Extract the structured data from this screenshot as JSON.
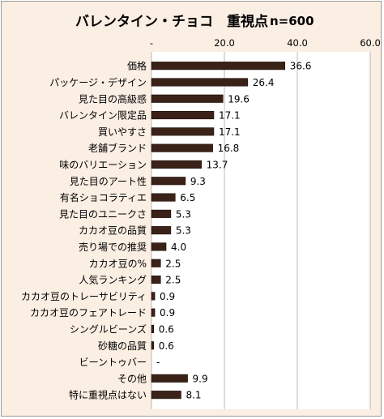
{
  "chart_data": {
    "type": "bar",
    "orientation": "horizontal",
    "title": "バレンタイン・チョコ　重視点",
    "subtitle": "n=600",
    "xlim": [
      0,
      60
    ],
    "x_ticks": [
      "-",
      "20.0",
      "40.0",
      "60.0"
    ],
    "categories": [
      "価格",
      "パッケージ・デザイン",
      "見た目の高級感",
      "バレンタイン限定品",
      "買いやすさ",
      "老舗ブランド",
      "味のバリエーション",
      "見た目のアート性",
      "有名ショコラティエ",
      "見た目のユニークさ",
      "カカオ豆の品質",
      "売り場での推奨",
      "カカオ豆の%",
      "人気ランキング",
      "カカオ豆のトレーサビリティ",
      "カカオ豆のフェアトレード",
      "シングルビーンズ",
      "砂糖の品質",
      "ビーントゥバー",
      "その他",
      "特に重視点はない"
    ],
    "values": [
      36.6,
      26.4,
      19.6,
      17.1,
      17.1,
      16.8,
      13.7,
      9.3,
      6.5,
      5.3,
      5.3,
      4.0,
      2.5,
      2.5,
      0.9,
      0.9,
      0.6,
      0.6,
      0,
      9.9,
      8.1
    ],
    "data_labels": [
      "36.6",
      "26.4",
      "19.6",
      "17.1",
      "17.1",
      "16.8",
      "13.7",
      "9.3",
      "6.5",
      "5.3",
      "5.3",
      "4.0",
      "2.5",
      "2.5",
      "0.9",
      "0.9",
      "0.6",
      "0.6",
      "-",
      "9.9",
      "8.1"
    ],
    "grid": true,
    "legend": "none",
    "colors": {
      "bar_fill": "#3b2218",
      "bar_stroke": "#1a0e08",
      "chart_background": "#fbeee3",
      "plot_background": "#ffffff",
      "gridline": "#b8b8b8"
    }
  }
}
